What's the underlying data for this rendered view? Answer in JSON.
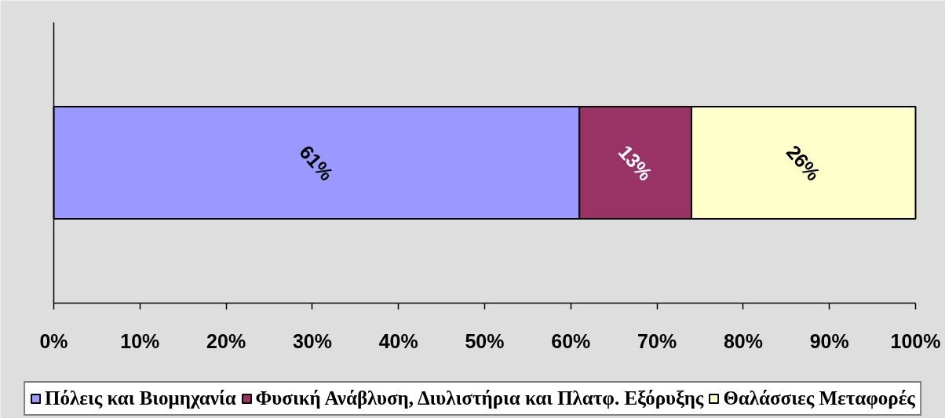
{
  "chart_data": {
    "type": "bar",
    "orientation": "horizontal",
    "stacked": true,
    "categories": [
      null
    ],
    "series": [
      {
        "name": "Πόλεις και Βιομηχανία",
        "color": "#9999ff",
        "values": [
          61
        ],
        "value_labels": [
          "61%"
        ]
      },
      {
        "name": "Φυσική Ανάβλυση, Διυλιστήρια και Πλατφ. Εξόρυξης",
        "color": "#993366",
        "values": [
          13
        ],
        "value_labels": [
          "13%"
        ]
      },
      {
        "name": "Θαλάσσιες Μεταφορές",
        "color": "#ffffcc",
        "values": [
          26
        ],
        "value_labels": [
          "26%"
        ]
      }
    ],
    "xlim": [
      0,
      100
    ],
    "xticks": [
      {
        "value": 0,
        "label": "0%"
      },
      {
        "value": 10,
        "label": "10%"
      },
      {
        "value": 20,
        "label": "20%"
      },
      {
        "value": 30,
        "label": "30%"
      },
      {
        "value": 40,
        "label": "40%"
      },
      {
        "value": 50,
        "label": "50%"
      },
      {
        "value": 60,
        "label": "60%"
      },
      {
        "value": 70,
        "label": "70%"
      },
      {
        "value": 80,
        "label": "80%"
      },
      {
        "value": 90,
        "label": "90%"
      },
      {
        "value": 100,
        "label": "100%"
      }
    ],
    "legend": "bottom",
    "tick_labels": "x"
  }
}
